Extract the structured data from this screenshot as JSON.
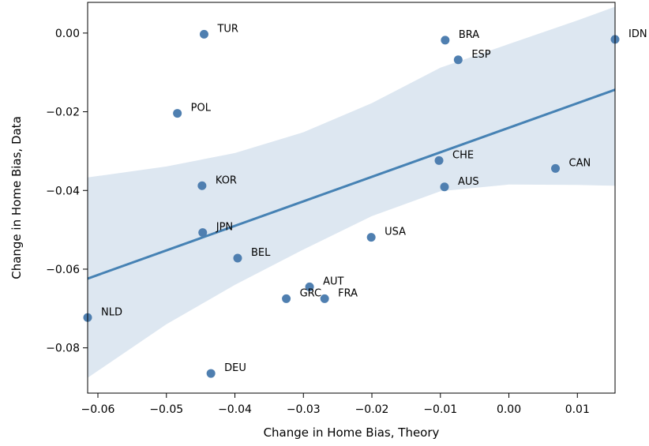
{
  "chart_data": {
    "type": "scatter",
    "xlabel": "Change in Home Bias, Theory",
    "ylabel": "Change in Home Bias, Data",
    "xlim": [
      -0.0615,
      0.0155
    ],
    "ylim": [
      -0.0915,
      0.0078
    ],
    "xticks": [
      -0.06,
      -0.05,
      -0.04,
      -0.03,
      -0.02,
      -0.01,
      0.0,
      0.01
    ],
    "xtick_labels": [
      "−0.06",
      "−0.05",
      "−0.04",
      "−0.03",
      "−0.02",
      "−0.01",
      "0.00",
      "0.01"
    ],
    "yticks": [
      0.0,
      -0.02,
      -0.04,
      -0.06,
      -0.08
    ],
    "ytick_labels": [
      "0.00",
      "−0.02",
      "−0.04",
      "−0.06",
      "−0.08"
    ],
    "grid": false,
    "colors": {
      "points": "#4f7fb0",
      "line": "#4682b4",
      "band": "#dde7f1"
    },
    "points": [
      {
        "label": "TUR",
        "x": -0.0445,
        "y": -0.0003
      },
      {
        "label": "BRA",
        "x": -0.0093,
        "y": -0.0018
      },
      {
        "label": "ESP",
        "x": -0.0074,
        "y": -0.0068
      },
      {
        "label": "IDN",
        "x": 0.0155,
        "y": -0.0016
      },
      {
        "label": "POL",
        "x": -0.0484,
        "y": -0.0204
      },
      {
        "label": "CHE",
        "x": -0.0102,
        "y": -0.0324
      },
      {
        "label": "CAN",
        "x": 0.0068,
        "y": -0.0344
      },
      {
        "label": "KOR",
        "x": -0.0448,
        "y": -0.0388
      },
      {
        "label": "AUS",
        "x": -0.0094,
        "y": -0.0391
      },
      {
        "label": "JPN",
        "x": -0.0447,
        "y": -0.0507
      },
      {
        "label": "USA",
        "x": -0.0201,
        "y": -0.0519
      },
      {
        "label": "BEL",
        "x": -0.0396,
        "y": -0.0572
      },
      {
        "label": "AUT",
        "x": -0.0291,
        "y": -0.0645
      },
      {
        "label": "GRC",
        "x": -0.0325,
        "y": -0.0675
      },
      {
        "label": "FRA",
        "x": -0.0269,
        "y": -0.0675
      },
      {
        "label": "NLD",
        "x": -0.0615,
        "y": -0.0723
      },
      {
        "label": "DEU",
        "x": -0.0435,
        "y": -0.0865
      }
    ],
    "fit_line": {
      "x": [
        -0.0615,
        0.0155
      ],
      "y": [
        -0.0624,
        -0.0144
      ]
    },
    "confidence_band": {
      "x": [
        -0.0615,
        -0.05,
        -0.04,
        -0.03,
        -0.02,
        -0.01,
        0.0,
        0.01,
        0.0155
      ],
      "lower": [
        -0.0876,
        -0.074,
        -0.064,
        -0.055,
        -0.0465,
        -0.0402,
        -0.0385,
        -0.0386,
        -0.0388
      ],
      "upper": [
        -0.0367,
        -0.0339,
        -0.0305,
        -0.0252,
        -0.0178,
        -0.0088,
        -0.0028,
        0.0032,
        0.0067
      ]
    }
  }
}
